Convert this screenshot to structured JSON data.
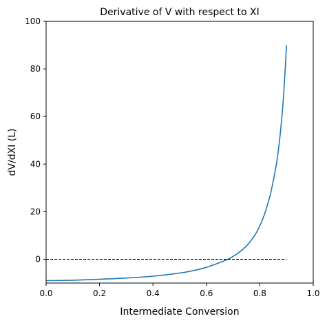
{
  "chart_data": {
    "type": "line",
    "title": "Derivative of V with respect to XI",
    "xlabel": "Intermediate Conversion",
    "ylabel": "dV/dXI (L)",
    "xlim": [
      0,
      1
    ],
    "ylim": [
      -10,
      100
    ],
    "xticks": [
      "0.0",
      "0.2",
      "0.4",
      "0.6",
      "0.8",
      "1.0"
    ],
    "yticks": [
      "0",
      "20",
      "40",
      "60",
      "80",
      "100"
    ],
    "grid": false,
    "series": [
      {
        "color": "#1f77b4",
        "style": "solid",
        "x": [
          0.0,
          0.1,
          0.2,
          0.3,
          0.4,
          0.5,
          0.55,
          0.6,
          0.65,
          0.68,
          0.7,
          0.72,
          0.75,
          0.78,
          0.8,
          0.82,
          0.84,
          0.86,
          0.87,
          0.88,
          0.89,
          0.9
        ],
        "y": [
          -9.0,
          -8.8,
          -8.4,
          -7.9,
          -7.1,
          -5.8,
          -4.8,
          -3.4,
          -1.4,
          0.0,
          1.2,
          2.7,
          5.6,
          9.9,
          14.0,
          19.7,
          27.5,
          38.6,
          46.4,
          56.4,
          70.3,
          90.0
        ]
      },
      {
        "color": "#000000",
        "style": "dashed",
        "x": [
          0.0,
          0.9
        ],
        "y": [
          0,
          0
        ]
      }
    ]
  }
}
